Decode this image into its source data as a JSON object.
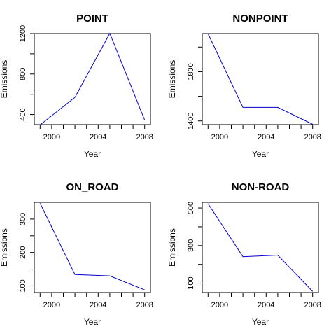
{
  "chart_data": [
    {
      "type": "line",
      "title": "POINT",
      "xlabel": "Year",
      "ylabel": "Emissions",
      "x": [
        1999,
        2002,
        2005,
        2008
      ],
      "series": [
        {
          "values": [
            297,
            569,
            1202,
            345
          ]
        }
      ],
      "xlim": [
        1998.5,
        2008.5
      ],
      "ylim": [
        300,
        1200
      ],
      "xticks": [
        1999,
        2000,
        2001,
        2002,
        2003,
        2004,
        2005,
        2006,
        2007,
        2008
      ],
      "xtick_labels": [
        "2000",
        "2004",
        "2008"
      ],
      "yticks": [
        400,
        600,
        800,
        1000,
        1200
      ],
      "ytick_labels": [
        "400",
        "800",
        "1200"
      ],
      "line_color": "#0000cc",
      "grid": false
    },
    {
      "type": "line",
      "title": "NONPOINT",
      "xlabel": "Year",
      "ylabel": "Emissions",
      "x": [
        1999,
        2002,
        2005,
        2008
      ],
      "series": [
        {
          "values": [
            2108,
            1510,
            1510,
            1373
          ]
        }
      ],
      "xlim": [
        1998.5,
        2008.5
      ],
      "ylim": [
        1370,
        2110
      ],
      "xticks": [
        1999,
        2000,
        2001,
        2002,
        2003,
        2004,
        2005,
        2006,
        2007,
        2008
      ],
      "xtick_labels": [
        "2000",
        "2004",
        "2008"
      ],
      "yticks": [
        1400,
        1600,
        1800,
        2000
      ],
      "ytick_labels": [
        "1400",
        "1800"
      ],
      "line_color": "#0000cc",
      "grid": false
    },
    {
      "type": "line",
      "title": "ON_ROAD",
      "xlabel": "Year",
      "ylabel": "Emissions",
      "x": [
        1999,
        2002,
        2005,
        2008
      ],
      "series": [
        {
          "values": [
            347,
            134,
            130,
            88
          ]
        }
      ],
      "xlim": [
        1998.5,
        2008.5
      ],
      "ylim": [
        80,
        350
      ],
      "xticks": [
        1999,
        2000,
        2001,
        2002,
        2003,
        2004,
        2005,
        2006,
        2007,
        2008
      ],
      "xtick_labels": [
        "2000",
        "2004",
        "2008"
      ],
      "yticks": [
        100,
        150,
        200,
        250,
        300
      ],
      "ytick_labels": [
        "100",
        "200",
        "300"
      ],
      "line_color": "#0000cc",
      "grid": false
    },
    {
      "type": "line",
      "title": "NON-ROAD",
      "xlabel": "Year",
      "ylabel": "Emissions",
      "x": [
        1999,
        2002,
        2005,
        2008
      ],
      "series": [
        {
          "values": [
            523,
            241,
            249,
            56
          ]
        }
      ],
      "xlim": [
        1998.5,
        2008.5
      ],
      "ylim": [
        50,
        530
      ],
      "xticks": [
        1999,
        2000,
        2001,
        2002,
        2003,
        2004,
        2005,
        2006,
        2007,
        2008
      ],
      "xtick_labels": [
        "2000",
        "2004",
        "2008"
      ],
      "yticks": [
        100,
        200,
        300,
        400,
        500
      ],
      "ytick_labels": [
        "100",
        "300",
        "500"
      ],
      "line_color": "#0000cc",
      "grid": false
    }
  ]
}
